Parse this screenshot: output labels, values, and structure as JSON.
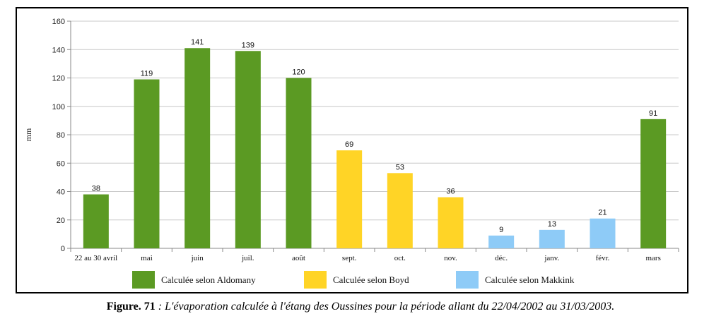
{
  "chart_data": {
    "type": "bar",
    "ylabel": "mm",
    "xlabel": "",
    "ylim": [
      0,
      160
    ],
    "yticks": [
      0,
      20,
      40,
      60,
      80,
      100,
      120,
      140,
      160
    ],
    "grid": true,
    "legend_position": "bottom",
    "categories": [
      "22 au 30 avril",
      "mai",
      "juin",
      "juil.",
      "août",
      "sept.",
      "oct.",
      "nov.",
      "déc.",
      "janv.",
      "févr.",
      "mars"
    ],
    "values": [
      38,
      119,
      141,
      139,
      120,
      69,
      53,
      36,
      9,
      13,
      21,
      91
    ],
    "value_labels": [
      "38",
      "119",
      "141",
      "139",
      "120",
      "69",
      "53",
      "36",
      "9",
      "13",
      "21",
      "91"
    ],
    "series_of_bar": [
      0,
      0,
      0,
      0,
      0,
      1,
      1,
      1,
      2,
      2,
      2,
      0
    ],
    "series": [
      {
        "name": "Calculée selon Aldomany",
        "color": "#5b9a23"
      },
      {
        "name": "Calculée selon Boyd",
        "color": "#ffd426"
      },
      {
        "name": "Calculée selon Makkink",
        "color": "#8ecbf7"
      }
    ]
  },
  "caption": {
    "figure_label": "Figure. 71",
    "text": " : L'évaporation calculée à l'étang des Oussines pour la période allant du 22/04/2002 au 31/03/2003."
  }
}
